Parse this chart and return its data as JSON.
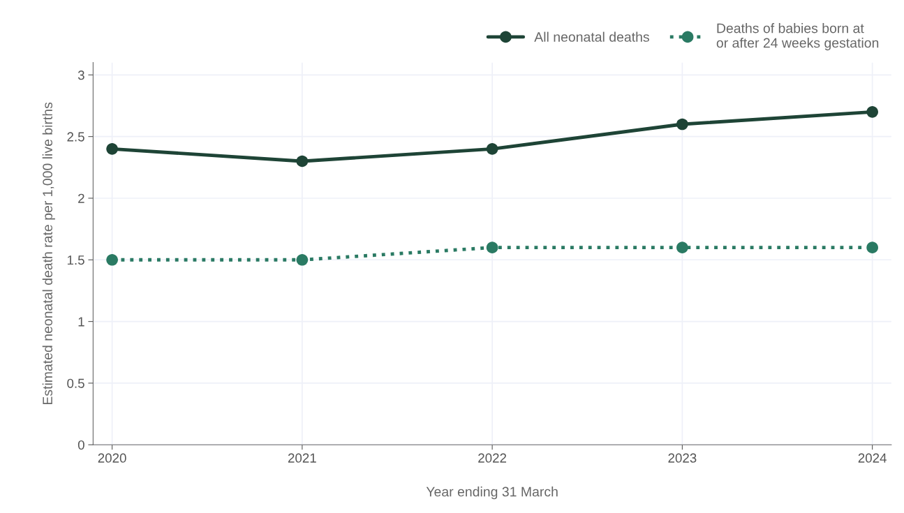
{
  "chart_data": {
    "type": "line",
    "xlabel": "Year ending 31 March",
    "ylabel": "Estimated neonatal death rate per 1,000 live births",
    "categories": [
      "2020",
      "2021",
      "2022",
      "2023",
      "2024"
    ],
    "series": [
      {
        "name": "All neonatal deaths",
        "color": "#1e4436",
        "line_style": "solid",
        "values": [
          2.4,
          2.3,
          2.4,
          2.6,
          2.7
        ]
      },
      {
        "name": "Deaths of babies born at\nor after 24 weeks gestation",
        "color": "#2a7a63",
        "line_style": "dotted",
        "values": [
          1.5,
          1.5,
          1.6,
          1.6,
          1.6
        ]
      }
    ],
    "ylim": [
      0,
      3.1
    ],
    "yticks": [
      0,
      0.5,
      1,
      1.5,
      2,
      2.5,
      3
    ],
    "grid": true,
    "legend": "top right",
    "marker": "circle"
  }
}
